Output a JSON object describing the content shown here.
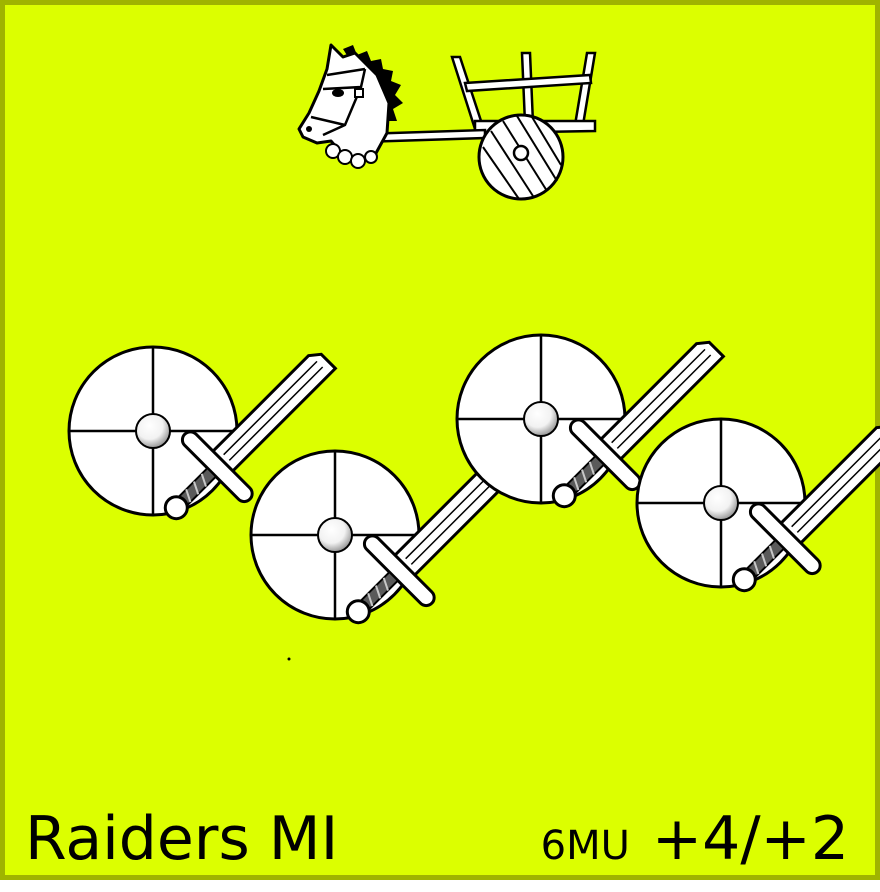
{
  "card": {
    "unit_name": "Raiders MI",
    "movement": "6MU",
    "combat": "+4/+2",
    "background_color": "#dcff00",
    "border_color": "#9fb400"
  },
  "artwork": {
    "vehicle": "horse-cart-icon",
    "troops": [
      "shield-sword-icon",
      "shield-sword-icon",
      "shield-sword-icon",
      "shield-sword-icon"
    ]
  }
}
